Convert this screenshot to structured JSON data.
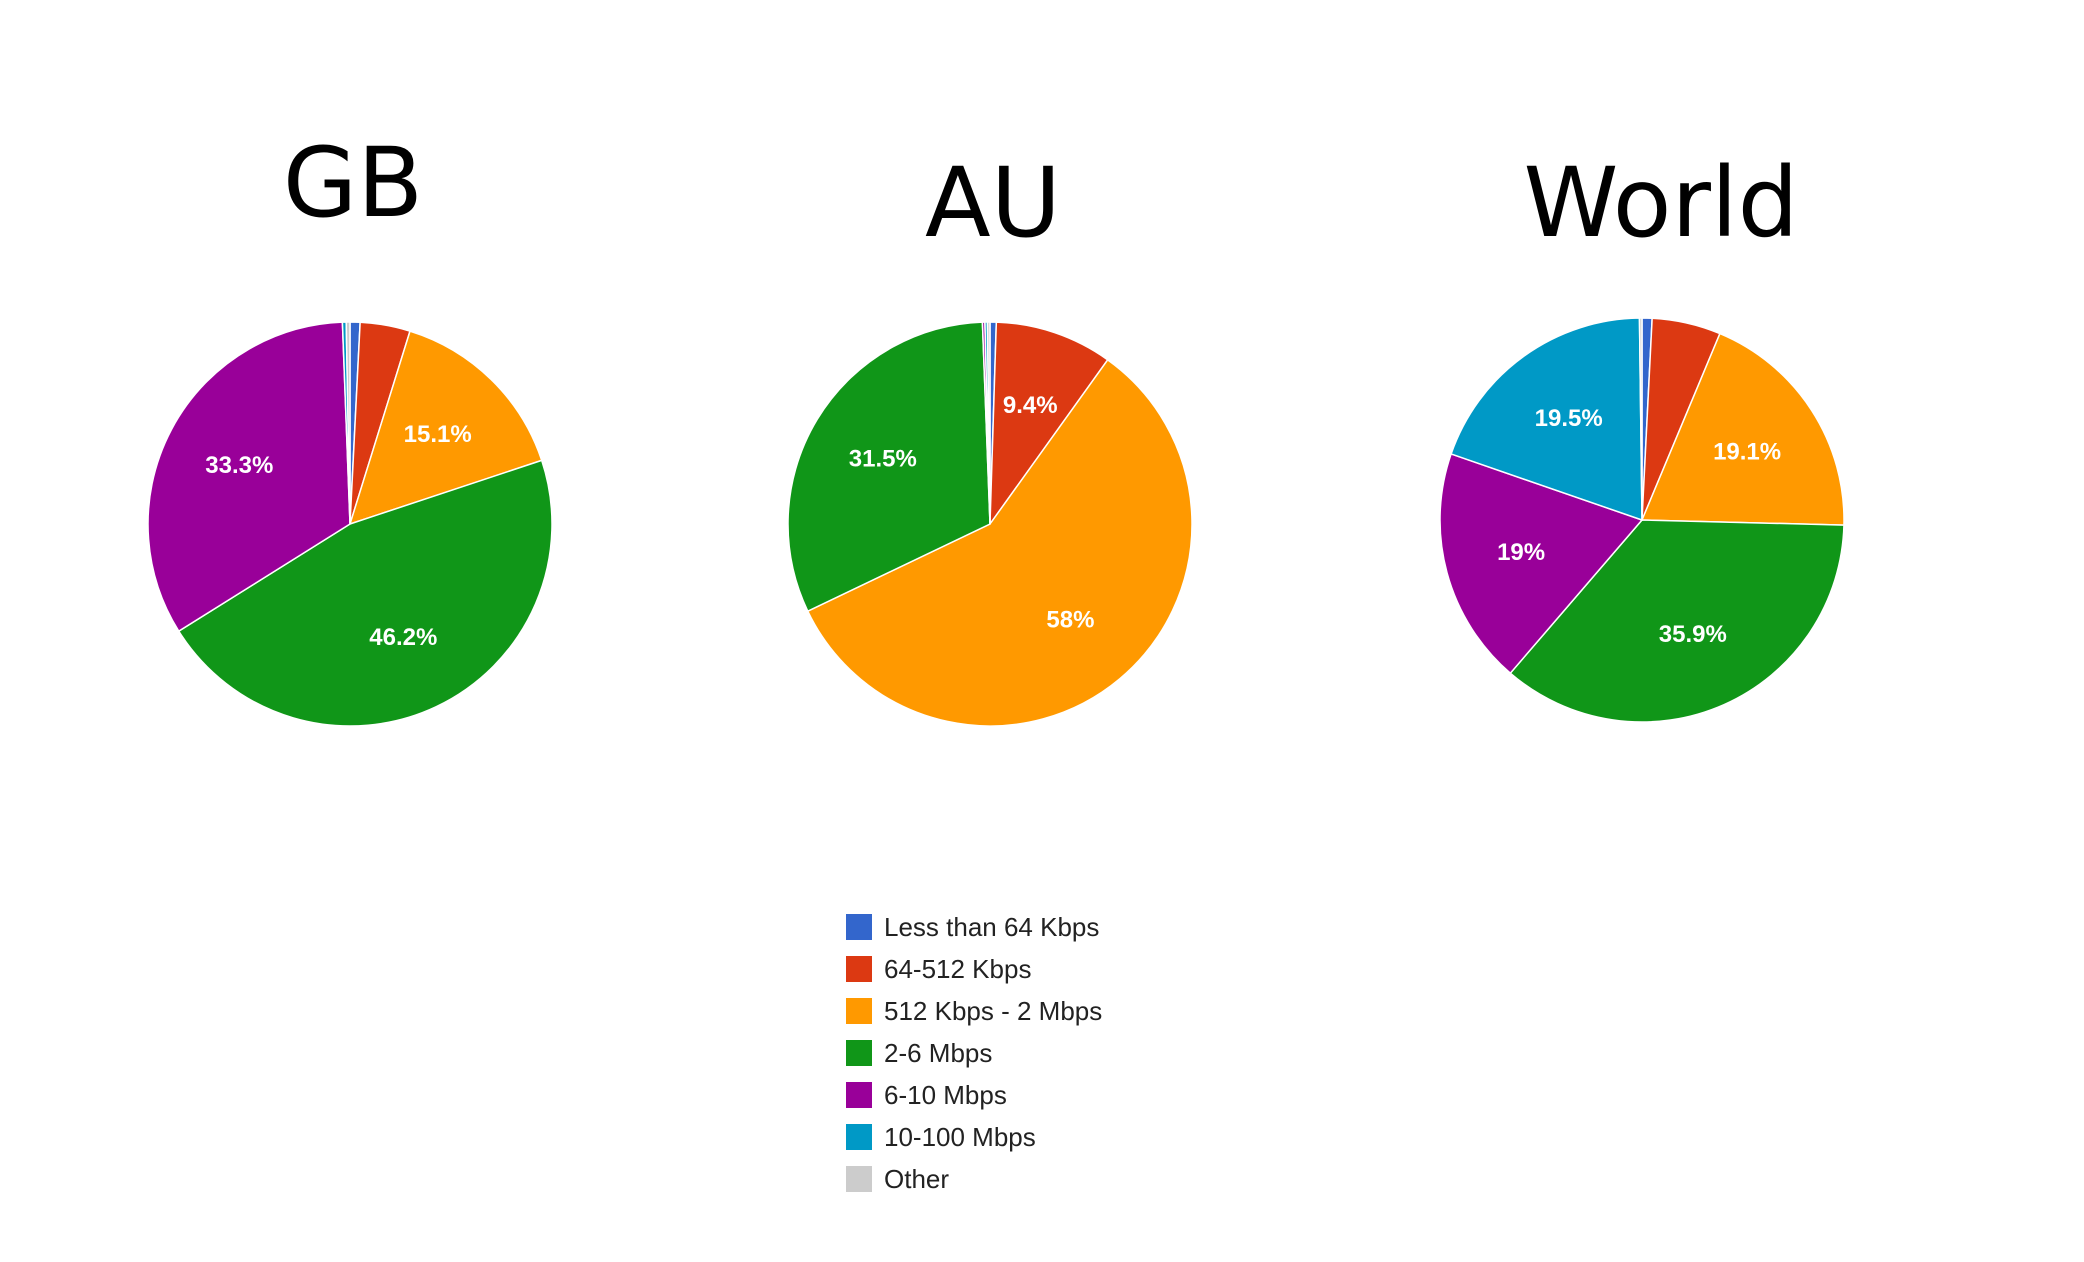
{
  "legend": [
    {
      "label": "Less than 64 Kbps",
      "color": "#3366cc"
    },
    {
      "label": "64-512 Kbps",
      "color": "#dc3912"
    },
    {
      "label": "512 Kbps - 2 Mbps",
      "color": "#ff9900"
    },
    {
      "label": "2-6 Mbps",
      "color": "#109618"
    },
    {
      "label": "6-10 Mbps",
      "color": "#990099"
    },
    {
      "label": "10-100 Mbps",
      "color": "#0099c6"
    },
    {
      "label": "Other",
      "color": "#cccccc"
    }
  ],
  "chart_data": [
    {
      "type": "pie",
      "title": "GB",
      "legend_position": "bottom",
      "slices": [
        {
          "name": "Less than 64 Kbps",
          "value": 0.8,
          "color": "#3366cc",
          "label": ""
        },
        {
          "name": "64-512 Kbps",
          "value": 4.0,
          "color": "#dc3912",
          "label": ""
        },
        {
          "name": "512 Kbps - 2 Mbps",
          "value": 15.1,
          "color": "#ff9900",
          "label": "15.1%"
        },
        {
          "name": "2-6 Mbps",
          "value": 46.2,
          "color": "#109618",
          "label": "46.2%"
        },
        {
          "name": "6-10 Mbps",
          "value": 33.3,
          "color": "#990099",
          "label": "33.3%"
        },
        {
          "name": "10-100 Mbps",
          "value": 0.3,
          "color": "#0099c6",
          "label": ""
        },
        {
          "name": "Other",
          "value": 0.3,
          "color": "#cccccc",
          "label": ""
        }
      ]
    },
    {
      "type": "pie",
      "title": "AU",
      "legend_position": "bottom",
      "slices": [
        {
          "name": "Less than 64 Kbps",
          "value": 0.5,
          "color": "#3366cc",
          "label": ""
        },
        {
          "name": "64-512 Kbps",
          "value": 9.4,
          "color": "#dc3912",
          "label": "9.4%"
        },
        {
          "name": "512 Kbps - 2 Mbps",
          "value": 58.0,
          "color": "#ff9900",
          "label": "58%"
        },
        {
          "name": "2-6 Mbps",
          "value": 31.5,
          "color": "#109618",
          "label": "31.5%"
        },
        {
          "name": "6-10 Mbps",
          "value": 0.2,
          "color": "#990099",
          "label": ""
        },
        {
          "name": "10-100 Mbps",
          "value": 0.2,
          "color": "#0099c6",
          "label": ""
        },
        {
          "name": "Other",
          "value": 0.2,
          "color": "#cccccc",
          "label": ""
        }
      ]
    },
    {
      "type": "pie",
      "title": "World",
      "legend_position": "bottom",
      "slices": [
        {
          "name": "Less than 64 Kbps",
          "value": 0.8,
          "color": "#3366cc",
          "label": ""
        },
        {
          "name": "64-512 Kbps",
          "value": 5.5,
          "color": "#dc3912",
          "label": ""
        },
        {
          "name": "512 Kbps - 2 Mbps",
          "value": 19.1,
          "color": "#ff9900",
          "label": "19.1%"
        },
        {
          "name": "2-6 Mbps",
          "value": 35.9,
          "color": "#109618",
          "label": "35.9%"
        },
        {
          "name": "6-10 Mbps",
          "value": 19.0,
          "color": "#990099",
          "label": "19%"
        },
        {
          "name": "10-100 Mbps",
          "value": 19.5,
          "color": "#0099c6",
          "label": "19.5%"
        },
        {
          "name": "Other",
          "value": 0.2,
          "color": "#cccccc",
          "label": ""
        }
      ]
    }
  ]
}
